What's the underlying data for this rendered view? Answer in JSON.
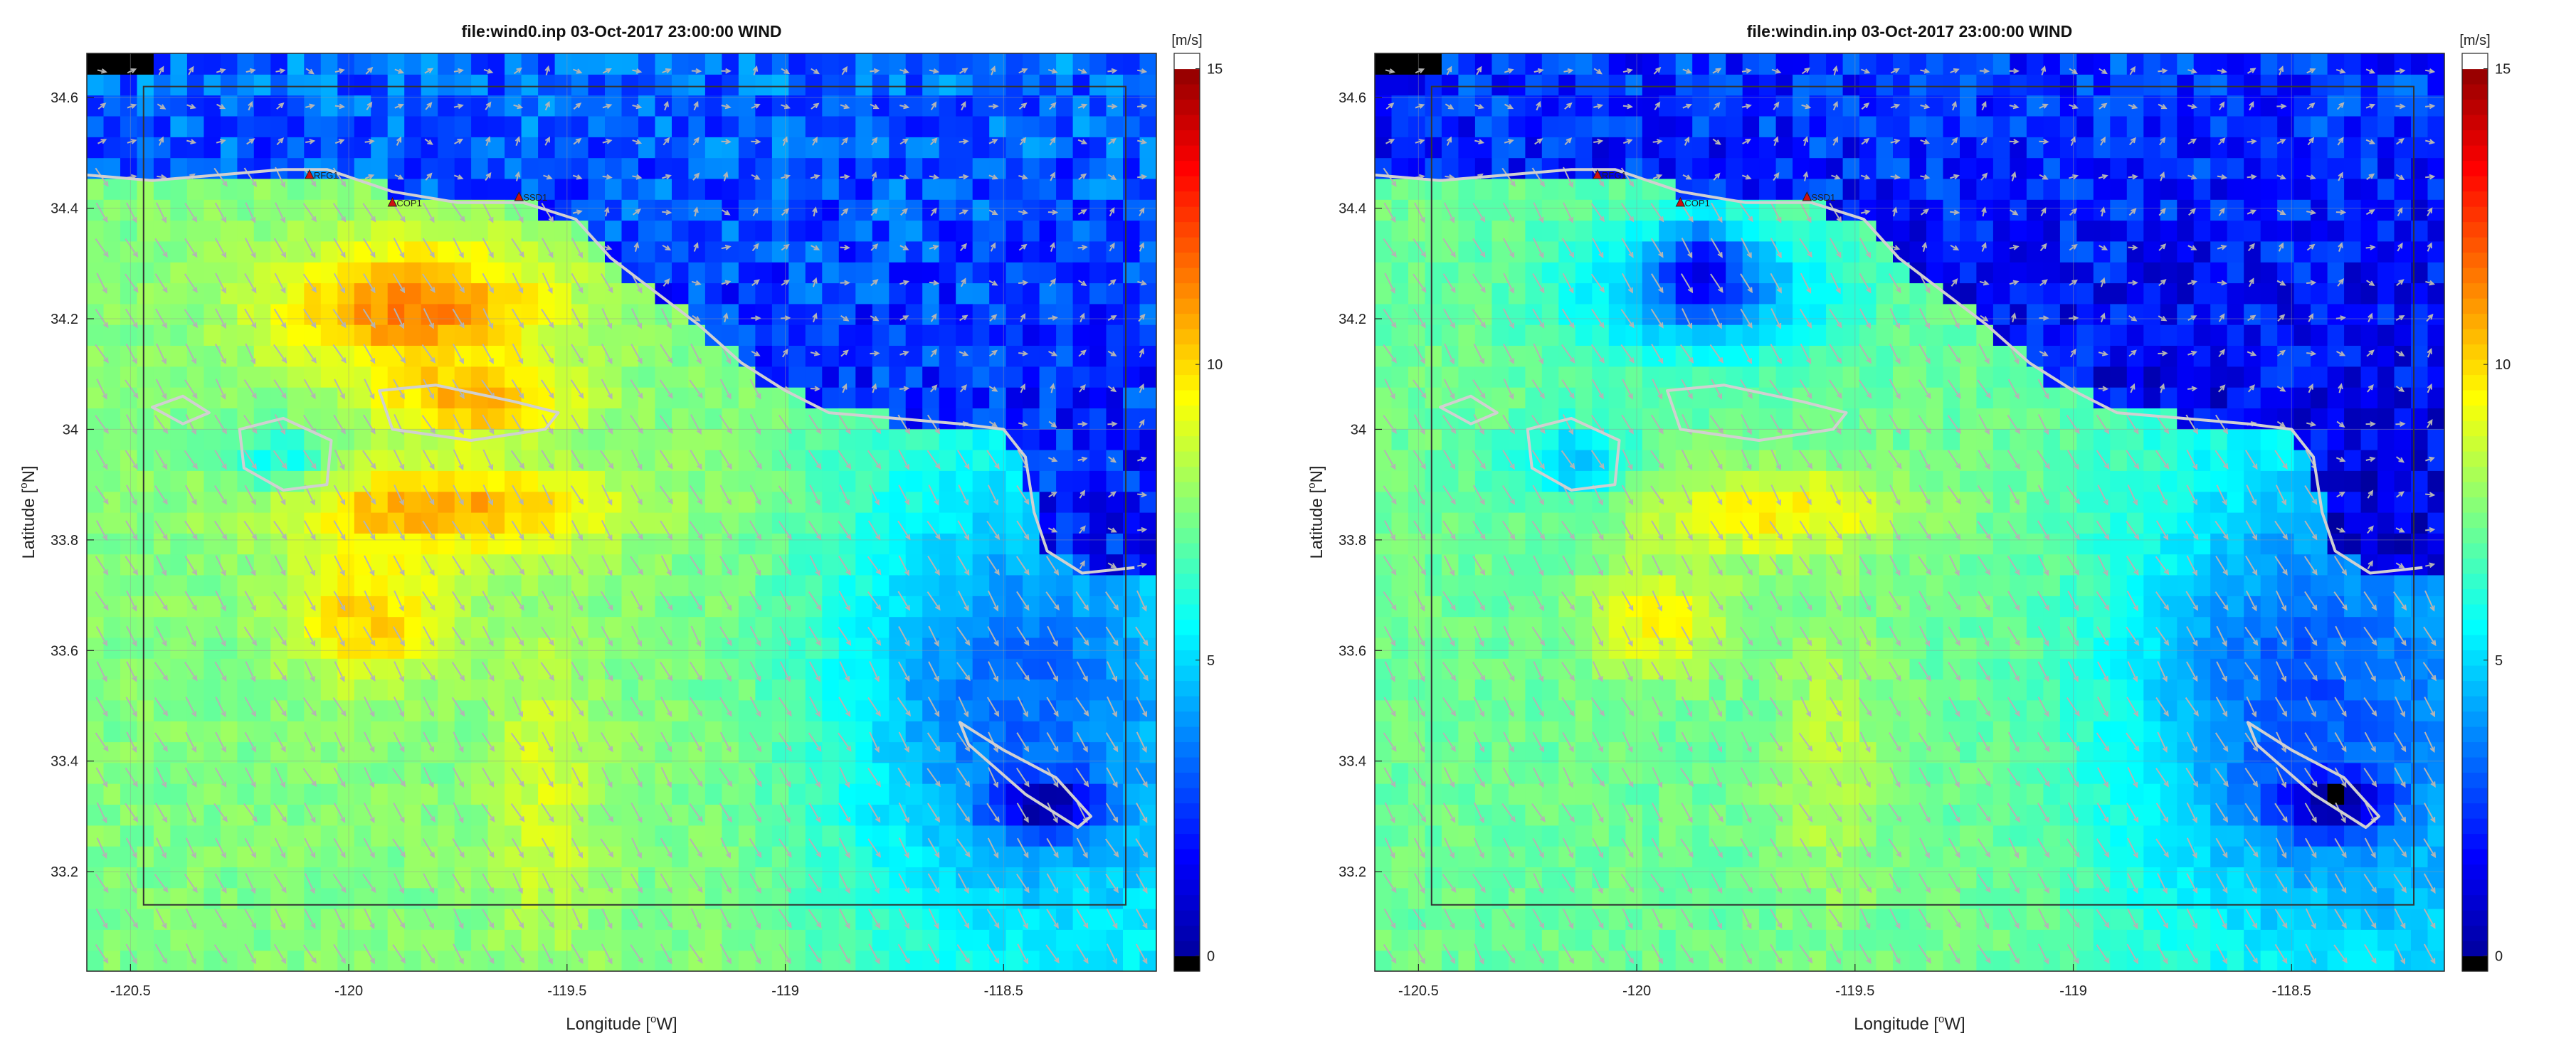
{
  "chart_data": [
    {
      "type": "heatmap",
      "title": "file:wind0.inp  03-Oct-2017 23:00:00  WIND",
      "xlabel": "Longitude [",
      "xlabel_sup": "o",
      "xlabel_end": "W]",
      "ylabel": "Latitude [",
      "ylabel_sup": "o",
      "ylabel_end": "N]",
      "xlim": [
        -120.6,
        -118.15
      ],
      "ylim": [
        33.02,
        34.68
      ],
      "xticks": [
        -120.5,
        -120,
        -119.5,
        -119,
        -118.5
      ],
      "xtick_labels": [
        "-120.5",
        "-120",
        "-119.5",
        "-119",
        "-118.5"
      ],
      "yticks": [
        33.2,
        33.4,
        33.6,
        33.8,
        34,
        34.2,
        34.4,
        34.6
      ],
      "ytick_labels": [
        "33.2",
        "33.4",
        "33.6",
        "33.8",
        "34",
        "34.2",
        "34.4",
        "34.6"
      ],
      "grid": true,
      "colorbar": {
        "label": "[m/s]",
        "ticks": [
          0,
          5,
          10,
          15
        ],
        "tick_labels": [
          "0",
          "5",
          "10",
          "15"
        ],
        "range": [
          0,
          15
        ]
      },
      "domain_box": {
        "lon": [
          -120.47,
          -118.22
        ],
        "lat": [
          33.14,
          34.62
        ]
      },
      "stations": [
        {
          "name": "RFG1",
          "lon": -120.09,
          "lat": 34.46
        },
        {
          "name": "COP1",
          "lon": -119.9,
          "lat": 34.41
        },
        {
          "name": "SSD1",
          "lon": -119.61,
          "lat": 34.42
        }
      ],
      "field": {
        "background_speed": 7.5,
        "wind_direction_deg_to": 150,
        "features": [
          {
            "kind": "gauss",
            "lon": -119.85,
            "lat": 34.22,
            "rlon": 0.32,
            "rlat": 0.12,
            "amp": 3.8
          },
          {
            "kind": "gauss",
            "lon": -119.7,
            "lat": 34.05,
            "rlon": 0.22,
            "rlat": 0.06,
            "amp": 2.8
          },
          {
            "kind": "gauss",
            "lon": -119.78,
            "lat": 33.86,
            "rlon": 0.38,
            "rlat": 0.08,
            "amp": 3.2
          },
          {
            "kind": "gauss",
            "lon": -119.95,
            "lat": 33.66,
            "rlon": 0.18,
            "rlat": 0.12,
            "amp": 2.6
          },
          {
            "kind": "gauss",
            "lon": -119.55,
            "lat": 33.35,
            "rlon": 0.12,
            "rlat": 0.3,
            "amp": 1.3
          },
          {
            "kind": "gauss",
            "lon": -118.5,
            "lat": 33.5,
            "rlon": 0.4,
            "rlat": 0.4,
            "amp": -3.0
          },
          {
            "kind": "gauss",
            "lon": -118.4,
            "lat": 33.32,
            "rlon": 0.12,
            "rlat": 0.05,
            "amp": -4.0
          },
          {
            "kind": "gauss",
            "lon": -120.15,
            "lat": 33.94,
            "rlon": 0.12,
            "rlat": 0.06,
            "amp": -2.0
          }
        ],
        "land_speed": 3.0
      }
    },
    {
      "type": "heatmap",
      "title": "file:windin.inp  03-Oct-2017 23:00:00  WIND",
      "xlabel": "Longitude [",
      "xlabel_sup": "o",
      "xlabel_end": "W]",
      "ylabel": "Latitude [",
      "ylabel_sup": "o",
      "ylabel_end": "N]",
      "xlim": [
        -120.6,
        -118.15
      ],
      "ylim": [
        33.02,
        34.68
      ],
      "xticks": [
        -120.5,
        -120,
        -119.5,
        -119,
        -118.5
      ],
      "xtick_labels": [
        "-120.5",
        "-120",
        "-119.5",
        "-119",
        "-118.5"
      ],
      "yticks": [
        33.2,
        33.4,
        33.6,
        33.8,
        34,
        34.2,
        34.4,
        34.6
      ],
      "ytick_labels": [
        "33.2",
        "33.4",
        "33.6",
        "33.8",
        "34",
        "34.2",
        "34.4",
        "34.6"
      ],
      "grid": true,
      "colorbar": {
        "label": "[m/s]",
        "ticks": [
          0,
          5,
          10,
          15
        ],
        "tick_labels": [
          "0",
          "5",
          "10",
          "15"
        ],
        "range": [
          0,
          15
        ]
      },
      "domain_box": {
        "lon": [
          -120.47,
          -118.22
        ],
        "lat": [
          33.14,
          34.62
        ]
      },
      "stations": [
        {
          "name": "RFG1",
          "lon": -120.09,
          "lat": 34.46
        },
        {
          "name": "COP1",
          "lon": -119.9,
          "lat": 34.41
        },
        {
          "name": "SSD1",
          "lon": -119.61,
          "lat": 34.42
        }
      ],
      "field": {
        "background_speed": 7.2,
        "wind_direction_deg_to": 150,
        "features": [
          {
            "kind": "gauss",
            "lon": -119.7,
            "lat": 33.85,
            "rlon": 0.3,
            "rlat": 0.08,
            "amp": 2.4
          },
          {
            "kind": "gauss",
            "lon": -119.95,
            "lat": 33.65,
            "rlon": 0.16,
            "rlat": 0.1,
            "amp": 2.2
          },
          {
            "kind": "gauss",
            "lon": -119.55,
            "lat": 33.4,
            "rlon": 0.12,
            "rlat": 0.28,
            "amp": 1.2
          },
          {
            "kind": "gauss",
            "lon": -119.85,
            "lat": 34.25,
            "rlon": 0.3,
            "rlat": 0.12,
            "amp": -3.4
          },
          {
            "kind": "gauss",
            "lon": -119.85,
            "lat": 34.3,
            "rlon": 0.1,
            "rlat": 0.1,
            "amp": -2.5
          },
          {
            "kind": "gauss",
            "lon": -118.5,
            "lat": 33.5,
            "rlon": 0.4,
            "rlat": 0.4,
            "amp": -3.0
          },
          {
            "kind": "gauss",
            "lon": -118.4,
            "lat": 33.32,
            "rlon": 0.12,
            "rlat": 0.05,
            "amp": -4.0
          },
          {
            "kind": "gauss",
            "lon": -120.15,
            "lat": 33.94,
            "rlon": 0.14,
            "rlat": 0.07,
            "amp": -2.6
          }
        ],
        "land_speed": 2.2
      }
    }
  ],
  "geography": {
    "coastline": [
      [
        -120.6,
        34.46
      ],
      [
        -120.45,
        34.45
      ],
      [
        -120.3,
        34.46
      ],
      [
        -120.15,
        34.47
      ],
      [
        -120.05,
        34.47
      ],
      [
        -119.9,
        34.43
      ],
      [
        -119.75,
        34.41
      ],
      [
        -119.6,
        34.41
      ],
      [
        -119.48,
        34.38
      ],
      [
        -119.4,
        34.31
      ],
      [
        -119.3,
        34.25
      ],
      [
        -119.2,
        34.19
      ],
      [
        -119.1,
        34.12
      ],
      [
        -119.0,
        34.07
      ],
      [
        -118.9,
        34.03
      ],
      [
        -118.75,
        34.02
      ],
      [
        -118.6,
        34.01
      ],
      [
        -118.5,
        34.0
      ],
      [
        -118.45,
        33.95
      ],
      [
        -118.43,
        33.85
      ],
      [
        -118.4,
        33.78
      ],
      [
        -118.32,
        33.74
      ],
      [
        -118.2,
        33.75
      ]
    ],
    "land_edge": [
      [
        -120.6,
        34.68
      ],
      [
        -118.15,
        34.68
      ],
      [
        -118.15,
        33.75
      ],
      [
        -118.2,
        33.75
      ]
    ],
    "islands": [
      [
        [
          -120.45,
          34.04
        ],
        [
          -120.38,
          34.06
        ],
        [
          -120.32,
          34.03
        ],
        [
          -120.38,
          34.01
        ]
      ],
      [
        [
          -120.25,
          34.0
        ],
        [
          -120.15,
          34.02
        ],
        [
          -120.04,
          33.98
        ],
        [
          -120.05,
          33.9
        ],
        [
          -120.15,
          33.89
        ],
        [
          -120.24,
          33.93
        ]
      ],
      [
        [
          -119.93,
          34.07
        ],
        [
          -119.8,
          34.08
        ],
        [
          -119.62,
          34.05
        ],
        [
          -119.52,
          34.03
        ],
        [
          -119.55,
          34.0
        ],
        [
          -119.72,
          33.98
        ],
        [
          -119.9,
          34.0
        ]
      ],
      [
        [
          -118.6,
          33.47
        ],
        [
          -118.5,
          33.42
        ],
        [
          -118.38,
          33.37
        ],
        [
          -118.3,
          33.3
        ],
        [
          -118.33,
          33.28
        ],
        [
          -118.45,
          33.34
        ],
        [
          -118.58,
          33.43
        ]
      ]
    ]
  },
  "colors": {
    "colormap_stops": [
      "#00008f",
      "#0000ff",
      "#0080ff",
      "#00ffff",
      "#80ff80",
      "#ffff00",
      "#ff8000",
      "#ff0000",
      "#800000"
    ],
    "colorbar_top": "#ffffff",
    "colorbar_bottom": "#000000",
    "coast": "#d0d0d0",
    "arrow": "#b4b4b4",
    "station_marker": "#d01010"
  }
}
